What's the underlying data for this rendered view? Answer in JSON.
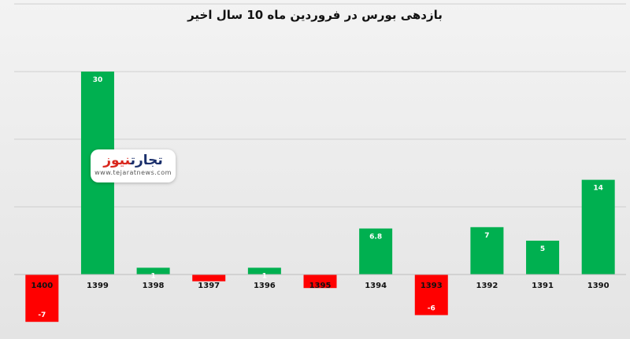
{
  "chart_data": {
    "type": "bar",
    "title": "بازدهی بورس در فروردین ماه 10 سال اخیر",
    "categories": [
      "1400",
      "1399",
      "1398",
      "1397",
      "1396",
      "1395",
      "1394",
      "1393",
      "1392",
      "1391",
      "1390"
    ],
    "values": [
      -7,
      30,
      1,
      -1,
      1,
      -2,
      6.8,
      -6,
      7,
      5,
      14
    ],
    "data_labels": [
      "-7",
      "30",
      "1",
      "",
      "1",
      "",
      "6.8",
      "-6",
      "7",
      "5",
      "14"
    ],
    "ylim": [
      -10,
      40
    ],
    "grid": true,
    "positive_color": "#00b050",
    "negative_color": "#ff0000",
    "xlabel": "",
    "ylabel": ""
  },
  "watermark": {
    "logo_part1": "تجارت",
    "logo_part2": "نیوز",
    "url": "www.tejaratnews.com"
  }
}
